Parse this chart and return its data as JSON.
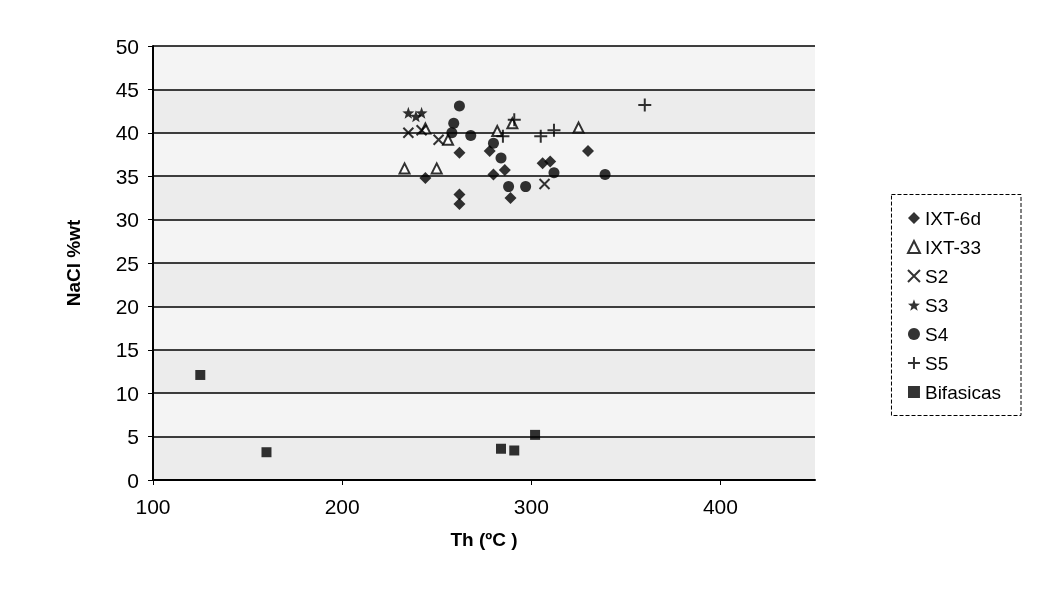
{
  "chart_data": {
    "type": "scatter",
    "xlabel": "Th (ºC )",
    "ylabel": "NaCl %wt",
    "xlim": [
      100,
      450
    ],
    "xticks": [
      100,
      200,
      300,
      400
    ],
    "ylim": [
      0,
      50
    ],
    "yticks": [
      0,
      5,
      10,
      15,
      20,
      25,
      30,
      35,
      40,
      45,
      50
    ],
    "grid": "y",
    "legend": "right",
    "series": [
      {
        "name": "IXT-6d",
        "color": "#000000",
        "marker": "diamond",
        "x": [
          262,
          278,
          330,
          306,
          280,
          286,
          262,
          262,
          289,
          244,
          310
        ],
        "values": [
          37.7,
          37.9,
          37.9,
          36.5,
          35.2,
          35.7,
          32.9,
          31.8,
          32.5,
          34.8,
          36.7
        ]
      },
      {
        "name": "IXT-33",
        "color": "#000000",
        "marker": "triangle",
        "x": [
          233,
          250,
          282,
          290,
          325,
          244,
          256
        ],
        "values": [
          35.9,
          35.9,
          40.2,
          41.1,
          40.6,
          40.5,
          39.2
        ]
      },
      {
        "name": "S2",
        "color": "#000000",
        "marker": "cross",
        "x": [
          251,
          307,
          235,
          242
        ],
        "values": [
          39.2,
          34.1,
          40.0,
          40.3
        ]
      },
      {
        "name": "S3",
        "color": "#000000",
        "marker": "star",
        "x": [
          235,
          242,
          239
        ],
        "values": [
          42.3,
          42.3,
          41.9
        ]
      },
      {
        "name": "S4",
        "color": "#000000",
        "marker": "circle",
        "x": [
          262,
          259,
          268,
          280,
          284,
          312,
          288,
          297,
          258,
          339
        ],
        "values": [
          43.1,
          41.1,
          39.7,
          38.8,
          37.1,
          35.4,
          33.8,
          33.8,
          40.0,
          35.2
        ]
      },
      {
        "name": "S5",
        "color": "#000000",
        "marker": "plus",
        "x": [
          291,
          305,
          312,
          285,
          360
        ],
        "values": [
          41.5,
          39.6,
          40.3,
          39.6,
          43.2
        ]
      },
      {
        "name": "Bifasicas",
        "color": "#000000",
        "marker": "square",
        "x": [
          125,
          160,
          284,
          291,
          302
        ],
        "values": [
          12.1,
          3.2,
          3.6,
          3.4,
          5.2
        ]
      }
    ]
  }
}
